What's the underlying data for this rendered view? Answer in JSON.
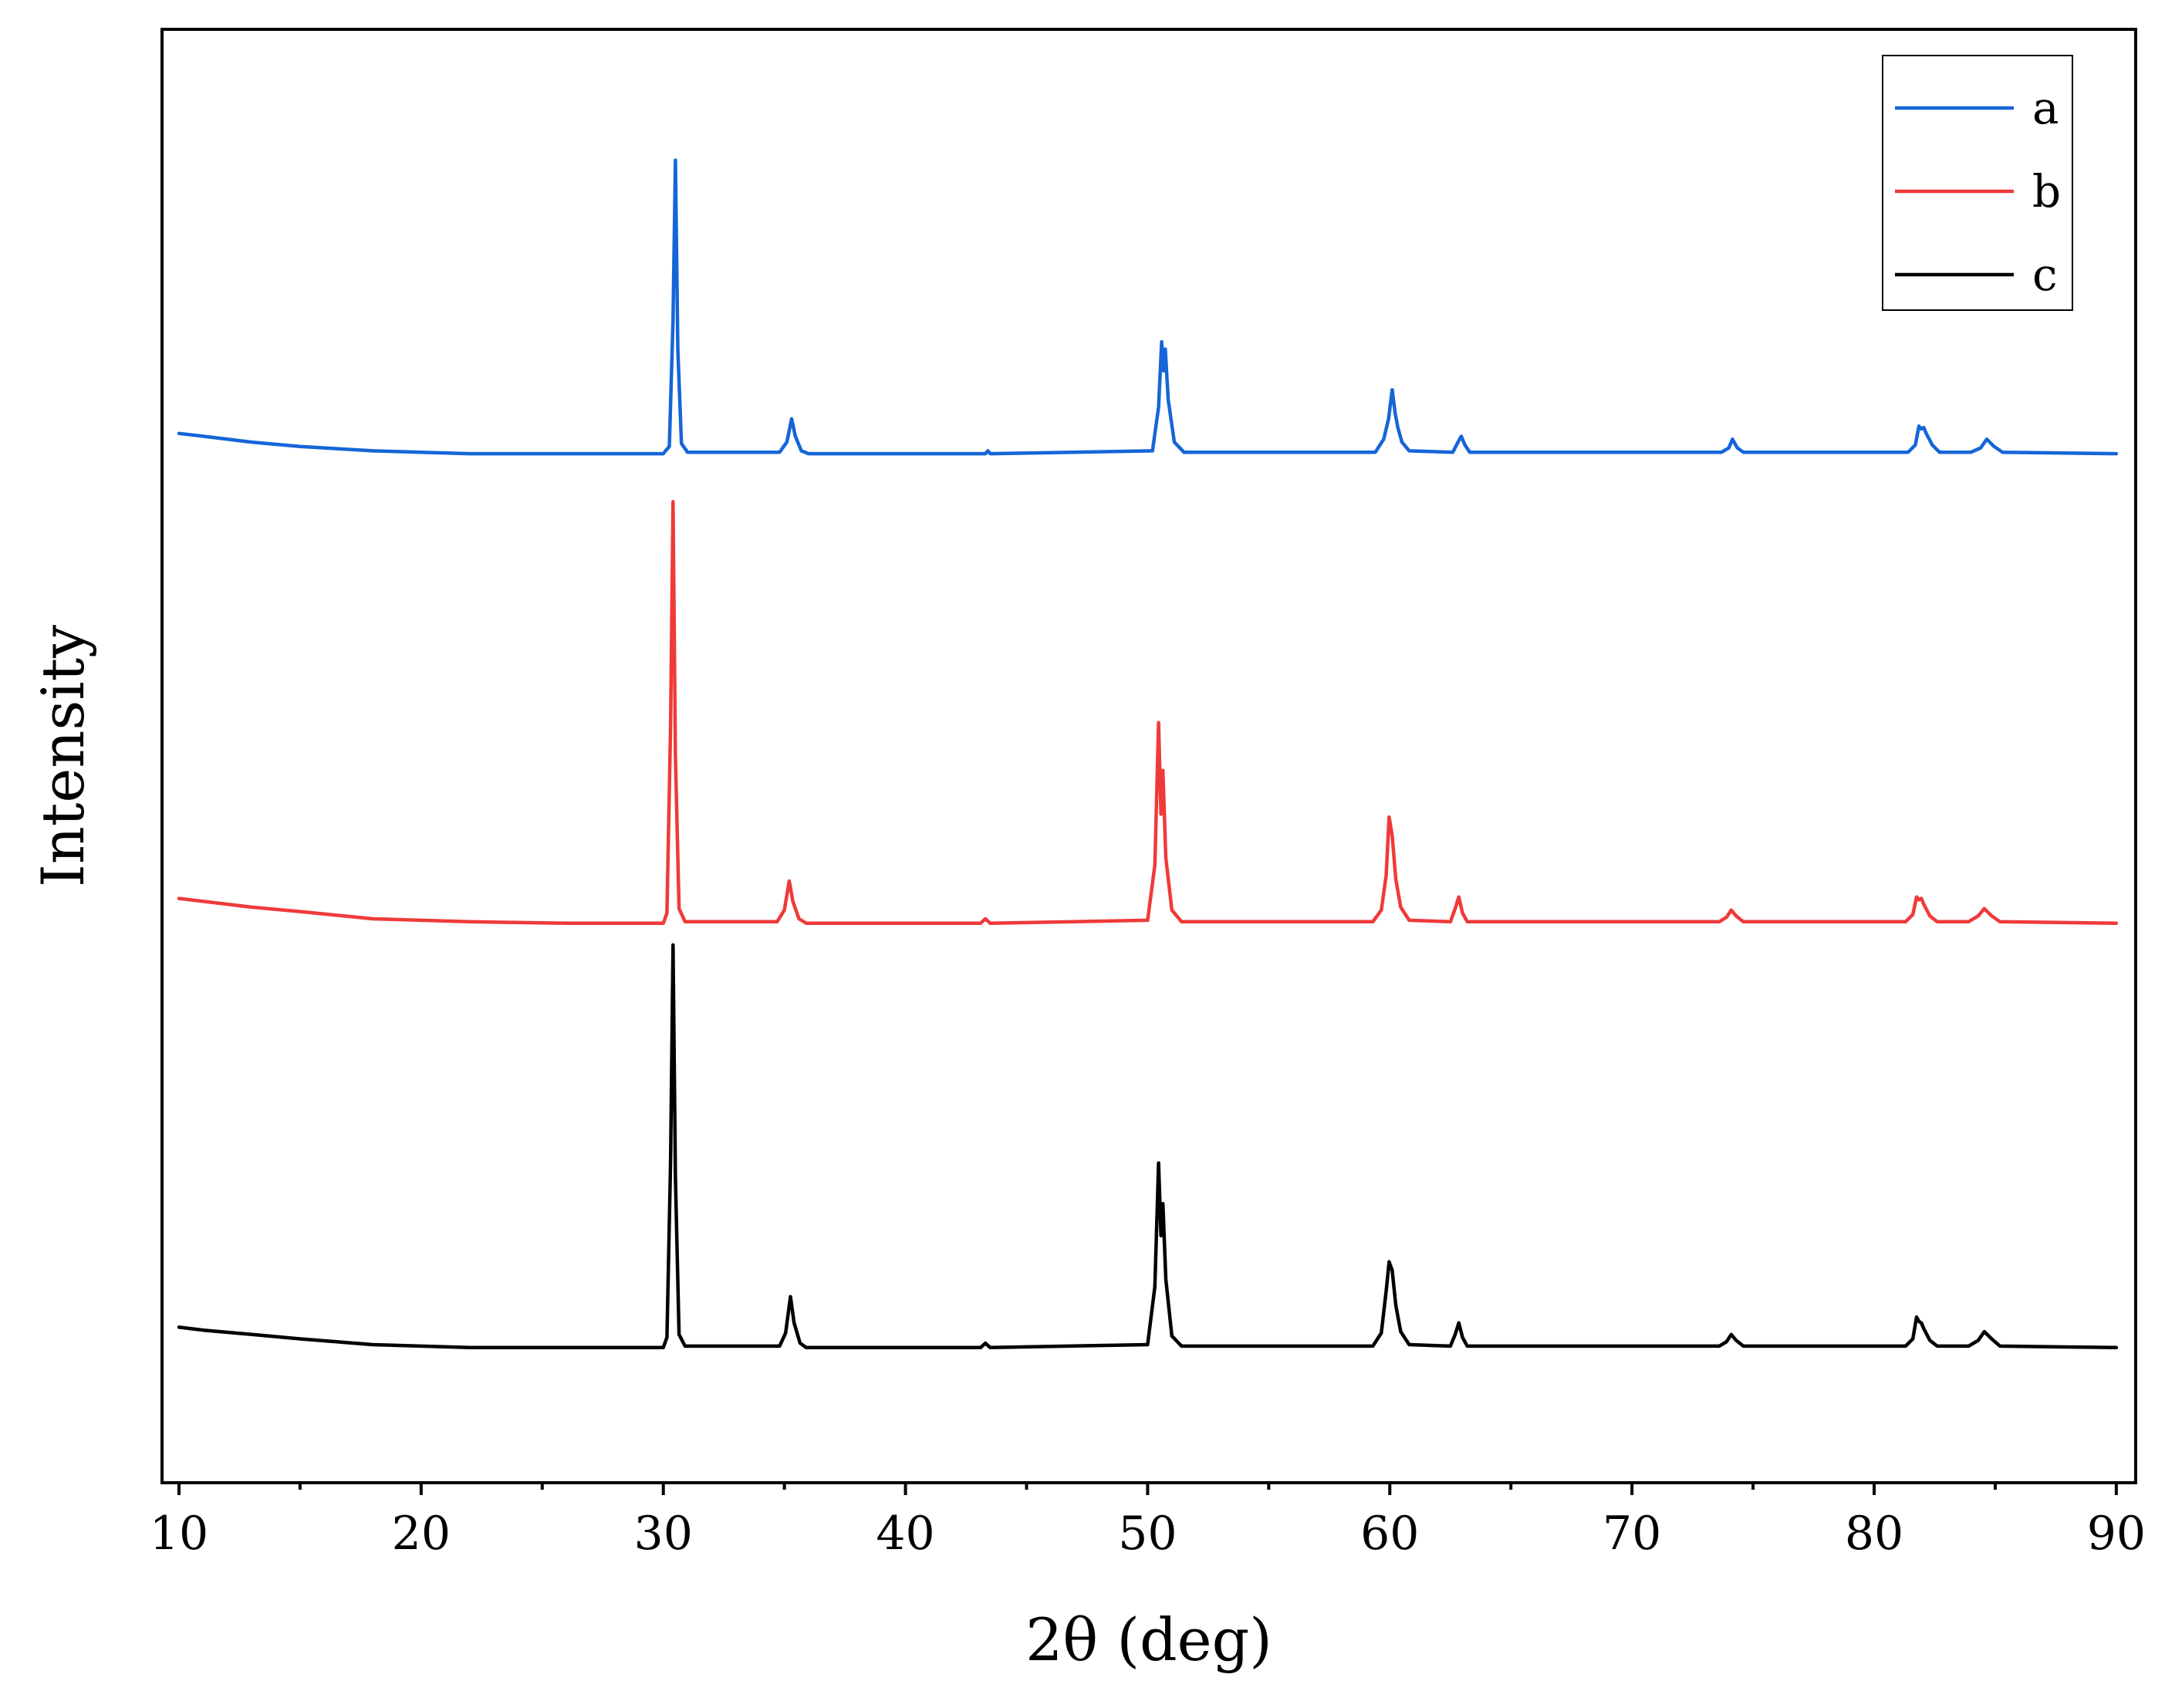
{
  "chart_data": {
    "type": "line",
    "xlabel": "2θ (deg)",
    "ylabel": "Intensity",
    "xlim": [
      9.3,
      90.8
    ],
    "ylim": [
      0,
      100
    ],
    "x_ticks": [
      10,
      20,
      30,
      40,
      50,
      60,
      70,
      80,
      90
    ],
    "x_tick_labels": [
      "10",
      "20",
      "30",
      "40",
      "50",
      "60",
      "70",
      "80",
      "90"
    ],
    "x_minor_ticks": [
      15,
      25,
      35,
      45,
      55,
      65,
      75,
      85
    ],
    "y_ticks_shown": false,
    "grid": false,
    "legend": {
      "position": "top-right",
      "entries": [
        "a",
        "b",
        "c"
      ]
    },
    "series": [
      {
        "name": "a",
        "color": "#1565d8",
        "x": [
          10,
          11,
          13,
          15,
          18,
          22,
          26,
          30,
          30.25,
          30.4,
          30.5,
          30.6,
          30.75,
          31,
          34.8,
          35.1,
          35.3,
          35.45,
          35.7,
          36,
          43.3,
          43.4,
          43.5,
          50.2,
          50.45,
          50.58,
          50.66,
          50.73,
          50.85,
          51.1,
          51.5,
          59.4,
          59.75,
          59.95,
          60.1,
          60.22,
          60.33,
          60.5,
          60.8,
          62.6,
          62.85,
          62.95,
          63.1,
          63.3,
          73.7,
          74.0,
          74.15,
          74.35,
          74.6,
          81.4,
          81.7,
          81.85,
          81.95,
          82.05,
          82.15,
          82.4,
          82.7,
          84.0,
          84.4,
          84.65,
          84.95,
          85.3,
          90
        ],
        "y": [
          72.2,
          72.0,
          71.6,
          71.3,
          71.0,
          70.8,
          70.8,
          70.8,
          71.3,
          80.0,
          91.0,
          78.0,
          71.5,
          70.9,
          70.9,
          71.6,
          73.2,
          72.0,
          71.0,
          70.8,
          70.8,
          71.0,
          70.8,
          71.0,
          74.0,
          78.5,
          76.5,
          78.0,
          74.5,
          71.6,
          70.9,
          70.9,
          71.8,
          73.2,
          75.2,
          73.6,
          72.6,
          71.6,
          71.0,
          70.9,
          71.7,
          72.0,
          71.4,
          70.9,
          70.9,
          71.2,
          71.8,
          71.2,
          70.9,
          70.9,
          71.4,
          72.7,
          72.5,
          72.6,
          72.2,
          71.4,
          70.9,
          70.9,
          71.2,
          71.8,
          71.3,
          70.9,
          70.8
        ]
      },
      {
        "name": "b",
        "color": "#ef3a3a",
        "x": [
          10,
          11,
          13,
          15,
          18,
          22,
          26,
          30,
          30.15,
          30.3,
          30.4,
          30.5,
          30.65,
          30.9,
          34.7,
          35.0,
          35.2,
          35.35,
          35.6,
          35.9,
          43.1,
          43.3,
          43.5,
          50.0,
          50.3,
          50.45,
          50.55,
          50.63,
          50.75,
          51.0,
          51.4,
          59.3,
          59.65,
          59.85,
          59.97,
          60.1,
          60.25,
          60.45,
          60.8,
          62.5,
          62.7,
          62.85,
          63.0,
          63.2,
          73.6,
          73.9,
          74.1,
          74.3,
          74.6,
          81.3,
          81.6,
          81.75,
          81.85,
          81.95,
          82.05,
          82.3,
          82.6,
          83.9,
          84.3,
          84.55,
          84.85,
          85.2,
          90
        ],
        "y": [
          40.2,
          40.0,
          39.6,
          39.3,
          38.8,
          38.6,
          38.5,
          38.5,
          39.2,
          52.0,
          67.5,
          50.0,
          39.5,
          38.6,
          38.6,
          39.4,
          41.4,
          40.0,
          38.8,
          38.5,
          38.5,
          38.8,
          38.5,
          38.7,
          42.5,
          52.3,
          46.0,
          49.0,
          43.0,
          39.4,
          38.6,
          38.6,
          39.4,
          41.8,
          45.8,
          44.5,
          41.5,
          39.6,
          38.7,
          38.6,
          39.5,
          40.3,
          39.2,
          38.6,
          38.6,
          38.9,
          39.4,
          39.0,
          38.6,
          38.6,
          39.1,
          40.3,
          40.1,
          40.2,
          39.8,
          39.0,
          38.6,
          38.6,
          39.0,
          39.5,
          39.0,
          38.6,
          38.5
        ]
      },
      {
        "name": "c",
        "color": "#000000",
        "x": [
          10,
          11,
          13,
          15,
          18,
          22,
          26,
          30,
          30.15,
          30.3,
          30.4,
          30.5,
          30.65,
          30.9,
          34.8,
          35.05,
          35.25,
          35.4,
          35.65,
          35.9,
          43.1,
          43.3,
          43.5,
          50.0,
          50.3,
          50.45,
          50.55,
          50.63,
          50.75,
          51.0,
          51.4,
          59.3,
          59.65,
          59.85,
          59.97,
          60.1,
          60.25,
          60.45,
          60.8,
          62.5,
          62.7,
          62.85,
          63.0,
          63.2,
          73.6,
          73.9,
          74.1,
          74.3,
          74.6,
          81.3,
          81.6,
          81.75,
          81.85,
          81.95,
          82.05,
          82.3,
          82.6,
          83.9,
          84.3,
          84.55,
          84.85,
          85.2,
          90
        ],
        "y": [
          10.7,
          10.5,
          10.2,
          9.9,
          9.5,
          9.3,
          9.3,
          9.3,
          10.0,
          22.0,
          37.0,
          21.0,
          10.2,
          9.4,
          9.4,
          10.3,
          12.8,
          11.0,
          9.6,
          9.3,
          9.3,
          9.6,
          9.3,
          9.5,
          13.5,
          22.0,
          17.0,
          19.2,
          14.0,
          10.1,
          9.4,
          9.4,
          10.3,
          13.2,
          15.2,
          14.6,
          12.2,
          10.4,
          9.5,
          9.4,
          10.2,
          11.0,
          10.0,
          9.4,
          9.4,
          9.7,
          10.2,
          9.8,
          9.4,
          9.4,
          9.9,
          11.4,
          11.1,
          11.0,
          10.6,
          9.8,
          9.4,
          9.4,
          9.8,
          10.4,
          9.9,
          9.4,
          9.3
        ]
      }
    ]
  }
}
